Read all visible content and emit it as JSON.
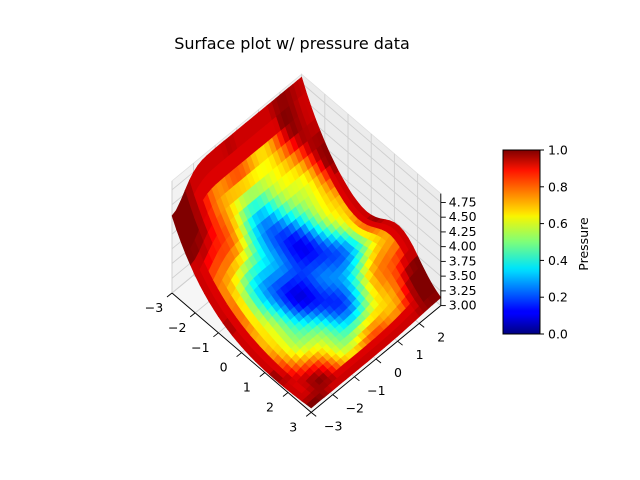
{
  "chart_data": {
    "type": "surface",
    "title": "Surface plot w/ pressure data",
    "x_ticks": [
      "−3",
      "−2",
      "−1",
      "0",
      "1",
      "2",
      "3"
    ],
    "y_ticks": [
      "−3",
      "−2",
      "−1",
      "0",
      "1",
      "2"
    ],
    "z_ticks": [
      "3.00",
      "3.25",
      "3.50",
      "3.75",
      "4.00",
      "4.25",
      "4.50",
      "4.75"
    ],
    "xlim": [
      -3,
      3
    ],
    "ylim": [
      -3,
      3
    ],
    "zlim": [
      3.0,
      4.9
    ],
    "colormap": "jet",
    "colorbar": {
      "label": "Pressure",
      "range": [
        0.0,
        1.0
      ],
      "ticks": [
        "0.0",
        "0.2",
        "0.4",
        "0.6",
        "0.8",
        "1.0"
      ]
    },
    "surface": {
      "x_range": [
        -3,
        3
      ],
      "y_range": [
        -3,
        3
      ],
      "z_base": 3.0,
      "z_ridge_peak": 4.85,
      "ridge_along": "x = -3 edge"
    },
    "pressure": {
      "description_min_at": [
        0,
        0
      ],
      "center_value": 0.05,
      "edge_value": 0.95
    }
  }
}
